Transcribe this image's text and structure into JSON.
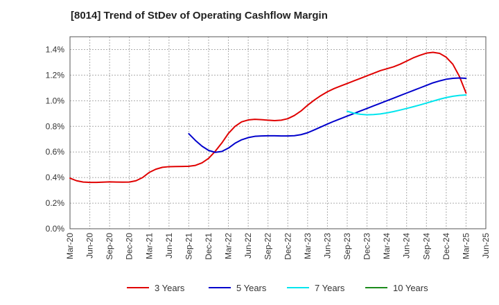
{
  "chart_data": {
    "type": "line",
    "title": "[8014]  Trend of StDev of Operating Cashflow Margin",
    "xlabel": "",
    "ylabel": "",
    "x_ticks": [
      "Mar-20",
      "Jun-20",
      "Sep-20",
      "Dec-20",
      "Mar-21",
      "Jun-21",
      "Sep-21",
      "Dec-21",
      "Mar-22",
      "Jun-22",
      "Sep-22",
      "Dec-22",
      "Mar-23",
      "Jun-23",
      "Sep-23",
      "Dec-23",
      "Mar-24",
      "Jun-24",
      "Sep-24",
      "Dec-24",
      "Mar-25",
      "Jun-25"
    ],
    "y_ticks": [
      "0.0%",
      "0.2%",
      "0.4%",
      "0.6%",
      "0.8%",
      "1.0%",
      "1.2%",
      "1.4%"
    ],
    "ylim": [
      0,
      1.5
    ],
    "grid": true,
    "legend_position": "bottom",
    "series": [
      {
        "name": "3 Years",
        "color": "#e00000",
        "x": [
          "Mar-20",
          "Apr-20",
          "May-20",
          "Jun-20",
          "Jul-20",
          "Aug-20",
          "Sep-20",
          "Oct-20",
          "Nov-20",
          "Dec-20",
          "Jan-21",
          "Feb-21",
          "Mar-21",
          "Apr-21",
          "May-21",
          "Jun-21",
          "Jul-21",
          "Aug-21",
          "Sep-21",
          "Oct-21",
          "Nov-21",
          "Dec-21",
          "Jan-22",
          "Feb-22",
          "Mar-22",
          "Apr-22",
          "May-22",
          "Jun-22",
          "Jul-22",
          "Aug-22",
          "Sep-22",
          "Oct-22",
          "Nov-22",
          "Dec-22",
          "Jan-23",
          "Feb-23",
          "Mar-23",
          "Apr-23",
          "May-23",
          "Jun-23",
          "Jul-23",
          "Aug-23",
          "Sep-23",
          "Oct-23",
          "Nov-23",
          "Dec-23",
          "Jan-24",
          "Feb-24",
          "Mar-24",
          "Apr-24",
          "May-24",
          "Jun-24",
          "Jul-24",
          "Aug-24",
          "Sep-24",
          "Oct-24",
          "Nov-24",
          "Dec-24",
          "Jan-25",
          "Feb-25",
          "Mar-25"
        ],
        "values": [
          0.395,
          0.375,
          0.365,
          0.362,
          0.362,
          0.364,
          0.366,
          0.365,
          0.364,
          0.365,
          0.375,
          0.4,
          0.44,
          0.465,
          0.48,
          0.485,
          0.486,
          0.487,
          0.488,
          0.495,
          0.515,
          0.55,
          0.605,
          0.67,
          0.745,
          0.8,
          0.835,
          0.85,
          0.855,
          0.852,
          0.848,
          0.845,
          0.848,
          0.86,
          0.885,
          0.92,
          0.965,
          1.005,
          1.04,
          1.07,
          1.095,
          1.115,
          1.135,
          1.155,
          1.175,
          1.195,
          1.215,
          1.235,
          1.25,
          1.265,
          1.285,
          1.31,
          1.335,
          1.355,
          1.372,
          1.378,
          1.37,
          1.34,
          1.285,
          1.19,
          1.06
        ]
      },
      {
        "name": "5 Years",
        "color": "#0000cc",
        "x": [
          "Sep-21",
          "Oct-21",
          "Nov-21",
          "Dec-21",
          "Jan-22",
          "Feb-22",
          "Mar-22",
          "Apr-22",
          "May-22",
          "Jun-22",
          "Jul-22",
          "Aug-22",
          "Sep-22",
          "Oct-22",
          "Nov-22",
          "Dec-22",
          "Jan-23",
          "Feb-23",
          "Mar-23",
          "Apr-23",
          "May-23",
          "Jun-23",
          "Jul-23",
          "Aug-23",
          "Sep-23",
          "Oct-23",
          "Nov-23",
          "Dec-23",
          "Jan-24",
          "Feb-24",
          "Mar-24",
          "Apr-24",
          "May-24",
          "Jun-24",
          "Jul-24",
          "Aug-24",
          "Sep-24",
          "Oct-24",
          "Nov-24",
          "Dec-24",
          "Jan-25",
          "Feb-25",
          "Mar-25"
        ],
        "values": [
          0.742,
          0.69,
          0.645,
          0.612,
          0.597,
          0.604,
          0.63,
          0.668,
          0.695,
          0.712,
          0.722,
          0.725,
          0.726,
          0.726,
          0.725,
          0.725,
          0.727,
          0.735,
          0.75,
          0.772,
          0.795,
          0.818,
          0.84,
          0.86,
          0.88,
          0.9,
          0.92,
          0.94,
          0.96,
          0.98,
          1.0,
          1.02,
          1.04,
          1.06,
          1.08,
          1.1,
          1.12,
          1.14,
          1.155,
          1.168,
          1.175,
          1.178,
          1.175
        ]
      },
      {
        "name": "7 Years",
        "color": "#00e5ee",
        "x": [
          "Sep-23",
          "Oct-23",
          "Nov-23",
          "Dec-23",
          "Jan-24",
          "Feb-24",
          "Mar-24",
          "Apr-24",
          "May-24",
          "Jun-24",
          "Jul-24",
          "Aug-24",
          "Sep-24",
          "Oct-24",
          "Nov-24",
          "Dec-24",
          "Jan-25",
          "Feb-25",
          "Mar-25"
        ],
        "values": [
          0.918,
          0.903,
          0.894,
          0.89,
          0.892,
          0.897,
          0.905,
          0.915,
          0.927,
          0.94,
          0.953,
          0.967,
          0.982,
          0.997,
          1.012,
          1.025,
          1.035,
          1.042,
          1.045
        ]
      },
      {
        "name": "10 Years",
        "color": "#1a8a1a",
        "x": [],
        "values": []
      }
    ]
  }
}
